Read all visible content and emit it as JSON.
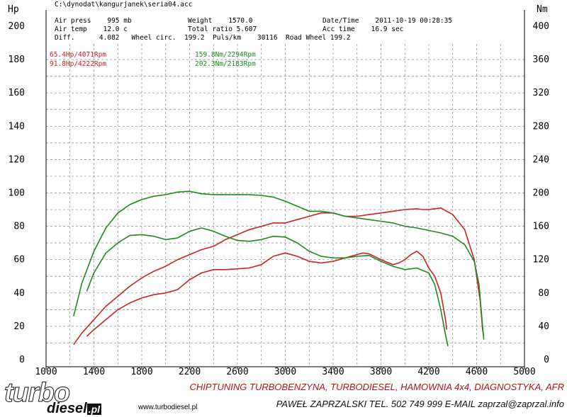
{
  "header": {
    "path": "C:\\dynodat\\kangurjanek\\seria04.acc",
    "air_press": "Air press    995 mb",
    "air_temp": "Air temp    12.0 c",
    "diff": "Diff.      4.082   Wheel circ.  199.2  Puls/km    30116  Road Wheel 199.2",
    "weight": "Weight    1570.0",
    "total_ratio": "Total ratio 5.607",
    "datetime": "Date/Time    2011-10-19 00:28:35",
    "acc_time": "Acc time    16.9 sec"
  },
  "axis_units": {
    "left": "Hp",
    "right": "Nm"
  },
  "annotations": {
    "hp_run1": "65.4Hp/4071Rpm",
    "hp_run2": "91.8Hp/4222Rpm",
    "nm_run1": "159.8Nm/2294Rpm",
    "nm_run2": "202.3Nm/2183Rpm"
  },
  "colors": {
    "power": "#cc2222",
    "torque": "#1e8a1e",
    "grid": "#888888"
  },
  "footer": {
    "logo_top": "turbo",
    "logo_bottom": "diesel",
    "logo_suffix": ".pl",
    "website": "www.turbodiesel.pl",
    "line1": "CHIPTUNING TURBOBENZYNA, TURBODIESEL, HAMOWNIA 4x4, DIAGNOSTYKA, AFR",
    "line2": "PAWEŁ ZAPRZALSKI TEL. 502 749 999 E-MAIL zaprzal@zaprzal.info"
  },
  "chart_data": {
    "type": "line",
    "xlim": [
      1000,
      5000
    ],
    "ylim_left": [
      0,
      200
    ],
    "ylim_right": [
      0,
      400
    ],
    "x_ticks": [
      1000,
      1400,
      1800,
      2200,
      2600,
      3000,
      3400,
      3800,
      4200,
      4600,
      5000
    ],
    "y_ticks_left": [
      0,
      20,
      40,
      60,
      80,
      100,
      120,
      140,
      160,
      180,
      200
    ],
    "y_ticks_right": [
      0,
      40,
      80,
      120,
      160,
      200,
      240,
      280,
      320,
      360,
      400
    ],
    "grid": true,
    "series": [
      {
        "axis": "left",
        "color": "#cc2222",
        "x": [
          1340,
          1400,
          1500,
          1600,
          1700,
          1800,
          1900,
          2000,
          2100,
          2200,
          2300,
          2400,
          2500,
          2600,
          2700,
          2800,
          2900,
          3000,
          3100,
          3200,
          3300,
          3400,
          3500,
          3600,
          3650,
          3700,
          3800,
          3900,
          3950,
          4000,
          4050,
          4100,
          4150,
          4200,
          4250,
          4300,
          4340,
          4350
        ],
        "y": [
          14,
          18,
          24,
          30,
          34,
          37,
          39,
          40,
          42,
          48,
          52,
          54,
          54,
          54.5,
          55,
          57,
          62,
          64,
          62,
          59,
          58,
          59,
          61,
          63,
          64,
          63.5,
          60,
          57,
          58,
          60,
          63,
          65,
          62,
          55,
          50,
          40,
          24,
          18
        ]
      },
      {
        "axis": "left",
        "color": "#cc2222",
        "x": [
          1230,
          1300,
          1400,
          1500,
          1600,
          1700,
          1800,
          1900,
          2000,
          2100,
          2200,
          2300,
          2400,
          2500,
          2600,
          2700,
          2800,
          2900,
          3000,
          3100,
          3200,
          3300,
          3400,
          3500,
          3600,
          3700,
          3800,
          3900,
          4000,
          4100,
          4150,
          4200,
          4250,
          4300,
          4400,
          4500,
          4580,
          4630,
          4650,
          4660
        ],
        "y": [
          9,
          16,
          24,
          32,
          38,
          44,
          49,
          53,
          56,
          60,
          63,
          66,
          68,
          72,
          75,
          78,
          80,
          82,
          82,
          84,
          86,
          88,
          88,
          86,
          86,
          87,
          88,
          89,
          90,
          90.5,
          90,
          90,
          90.5,
          91,
          87,
          78,
          60,
          35,
          18,
          14
        ]
      },
      {
        "axis": "right",
        "color": "#1e8a1e",
        "x": [
          1340,
          1400,
          1500,
          1600,
          1700,
          1800,
          1900,
          2000,
          2100,
          2200,
          2300,
          2400,
          2500,
          2600,
          2700,
          2800,
          2900,
          3000,
          3100,
          3200,
          3300,
          3400,
          3500,
          3600,
          3700,
          3800,
          3900,
          4000,
          4100,
          4200,
          4250,
          4300,
          4340,
          4360
        ],
        "y": [
          82,
          104,
          128,
          140,
          149,
          150,
          148,
          144,
          146,
          154,
          158,
          154,
          148,
          143,
          142,
          144,
          148,
          147,
          140,
          130,
          124,
          122,
          122,
          124,
          125,
          118,
          112,
          108,
          110,
          104,
          90,
          60,
          30,
          16
        ]
      },
      {
        "axis": "right",
        "color": "#1e8a1e",
        "x": [
          1230,
          1300,
          1400,
          1500,
          1600,
          1700,
          1800,
          1900,
          2000,
          2100,
          2200,
          2300,
          2400,
          2500,
          2600,
          2700,
          2800,
          2900,
          3000,
          3100,
          3200,
          3300,
          3400,
          3500,
          3600,
          3700,
          3800,
          3900,
          4000,
          4100,
          4200,
          4300,
          4400,
          4500,
          4580,
          4620,
          4650,
          4660
        ],
        "y": [
          52,
          92,
          130,
          158,
          176,
          186,
          192,
          196,
          198,
          201,
          202,
          199,
          198,
          198,
          198,
          198,
          197,
          195,
          190,
          184,
          178,
          178,
          176,
          172,
          170,
          168,
          166,
          164,
          160,
          158,
          155,
          152,
          148,
          138,
          118,
          90,
          40,
          24
        ]
      }
    ]
  }
}
